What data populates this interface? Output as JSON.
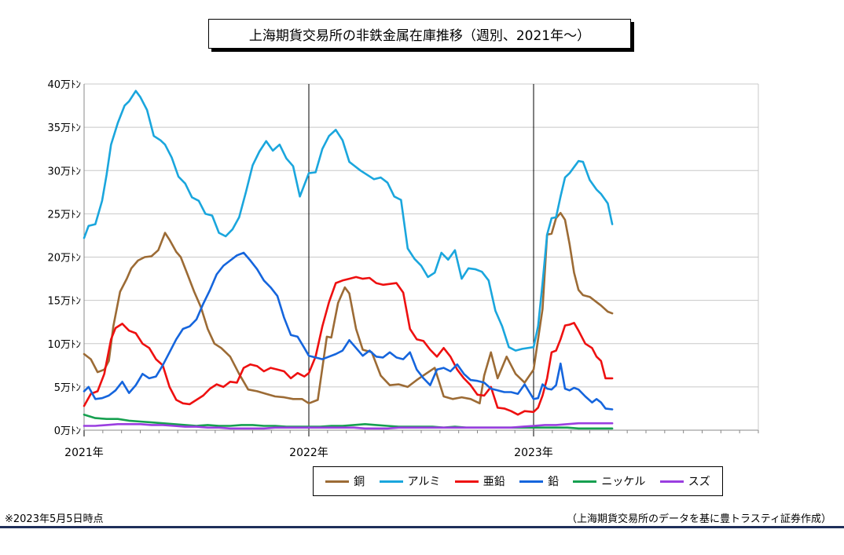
{
  "chart_data": {
    "type": "line",
    "title": "上海期貨交易所の非鉄金属在庫推移（週別、2021年～）",
    "ylabel": "",
    "xlabel": "",
    "ylim": [
      0,
      40
    ],
    "y_ticks": [
      0,
      5,
      10,
      15,
      20,
      25,
      30,
      35,
      40
    ],
    "y_tick_labels": [
      "0万ﾄﾝ",
      "5万ﾄﾝ",
      "10万ﾄﾝ",
      "15万ﾄﾝ",
      "20万ﾄﾝ",
      "25万ﾄﾝ",
      "30万ﾄﾝ",
      "35万ﾄﾝ",
      "40万ﾄﾝ"
    ],
    "x_labels": [
      "2021年",
      "2022年",
      "2023年"
    ],
    "xlim": [
      2021.0,
      2024.0
    ],
    "grid": true,
    "legend_position": "bottom",
    "series": [
      {
        "name": "銅",
        "color": "#9c6b35",
        "x": [
          2021.0,
          2021.03,
          2021.06,
          2021.09,
          2021.11,
          2021.13,
          2021.16,
          2021.19,
          2021.21,
          2021.24,
          2021.27,
          2021.3,
          2021.33,
          2021.36,
          2021.38,
          2021.41,
          2021.43,
          2021.46,
          2021.49,
          2021.52,
          2021.55,
          2021.58,
          2021.61,
          2021.65,
          2021.69,
          2021.73,
          2021.77,
          2021.81,
          2021.85,
          2021.89,
          2021.93,
          2021.97,
          2022.0,
          2022.04,
          2022.08,
          2022.1,
          2022.13,
          2022.16,
          2022.18,
          2022.21,
          2022.24,
          2022.28,
          2022.32,
          2022.36,
          2022.4,
          2022.44,
          2022.48,
          2022.52,
          2022.56,
          2022.6,
          2022.64,
          2022.68,
          2022.72,
          2022.76,
          2022.78,
          2022.81,
          2022.84,
          2022.88,
          2022.92,
          2022.96,
          2023.0,
          2023.02,
          2023.04,
          2023.06,
          2023.08,
          2023.1,
          2023.12,
          2023.14,
          2023.16,
          2023.18,
          2023.2,
          2023.22,
          2023.25,
          2023.28,
          2023.3,
          2023.33,
          2023.35
        ],
        "y": [
          8.8,
          8.2,
          6.7,
          7.0,
          8.0,
          12.0,
          16.0,
          17.5,
          18.7,
          19.6,
          20.0,
          20.1,
          20.8,
          22.8,
          22.0,
          20.6,
          20.0,
          18.0,
          16.0,
          14.2,
          11.7,
          10.0,
          9.5,
          8.5,
          6.5,
          4.7,
          4.5,
          4.2,
          3.9,
          3.8,
          3.6,
          3.6,
          3.1,
          3.5,
          10.8,
          10.7,
          14.7,
          16.5,
          15.8,
          11.7,
          9.3,
          9.0,
          6.3,
          5.2,
          5.3,
          5.0,
          5.8,
          6.5,
          7.2,
          3.9,
          3.6,
          3.8,
          3.6,
          3.1,
          6.3,
          9.0,
          6.0,
          8.5,
          6.5,
          5.5,
          7.0,
          10.5,
          14.0,
          22.6,
          22.7,
          24.5,
          25.1,
          24.3,
          21.5,
          18.2,
          16.2,
          15.6,
          15.4,
          14.8,
          14.4,
          13.7,
          13.5
        ]
      },
      {
        "name": "アルミ",
        "color": "#1aa6dd",
        "x": [
          2021.0,
          2021.02,
          2021.05,
          2021.08,
          2021.1,
          2021.12,
          2021.15,
          2021.18,
          2021.2,
          2021.23,
          2021.25,
          2021.28,
          2021.31,
          2021.34,
          2021.36,
          2021.39,
          2021.42,
          2021.45,
          2021.48,
          2021.51,
          2021.54,
          2021.57,
          2021.6,
          2021.63,
          2021.66,
          2021.69,
          2021.72,
          2021.75,
          2021.78,
          2021.81,
          2021.84,
          2021.87,
          2021.9,
          2021.93,
          2021.96,
          2022.0,
          2022.03,
          2022.06,
          2022.09,
          2022.12,
          2022.15,
          2022.18,
          2022.2,
          2022.23,
          2022.26,
          2022.29,
          2022.32,
          2022.35,
          2022.38,
          2022.41,
          2022.44,
          2022.47,
          2022.5,
          2022.53,
          2022.56,
          2022.59,
          2022.62,
          2022.65,
          2022.68,
          2022.71,
          2022.74,
          2022.77,
          2022.8,
          2022.83,
          2022.86,
          2022.89,
          2022.92,
          2022.95,
          2023.0,
          2023.02,
          2023.04,
          2023.06,
          2023.08,
          2023.1,
          2023.12,
          2023.14,
          2023.16,
          2023.18,
          2023.2,
          2023.22,
          2023.25,
          2023.28,
          2023.3,
          2023.33,
          2023.35
        ],
        "y": [
          22.2,
          23.6,
          23.8,
          26.5,
          29.5,
          33.0,
          35.5,
          37.5,
          38.0,
          39.2,
          38.5,
          37.0,
          34.0,
          33.5,
          33.0,
          31.5,
          29.3,
          28.5,
          26.9,
          26.5,
          25.0,
          24.8,
          22.8,
          22.4,
          23.2,
          24.6,
          27.5,
          30.6,
          32.2,
          33.4,
          32.3,
          33.0,
          31.4,
          30.5,
          27.0,
          29.7,
          29.8,
          32.5,
          34.0,
          34.7,
          33.5,
          31.0,
          30.6,
          30.0,
          29.5,
          29.0,
          29.2,
          28.6,
          27.0,
          26.6,
          21.0,
          19.8,
          19.0,
          17.7,
          18.2,
          20.5,
          19.7,
          20.8,
          17.5,
          18.7,
          18.6,
          18.3,
          17.3,
          13.8,
          12.0,
          9.6,
          9.2,
          9.4,
          9.6,
          12.0,
          17.0,
          22.6,
          24.5,
          24.6,
          27.0,
          29.2,
          29.7,
          30.4,
          31.1,
          31.0,
          28.9,
          27.8,
          27.3,
          26.2,
          23.8
        ]
      },
      {
        "name": "亜鉛",
        "color": "#ee1010",
        "x": [
          2021.0,
          2021.03,
          2021.06,
          2021.09,
          2021.12,
          2021.14,
          2021.17,
          2021.2,
          2021.23,
          2021.26,
          2021.29,
          2021.32,
          2021.35,
          2021.38,
          2021.41,
          2021.44,
          2021.47,
          2021.5,
          2021.53,
          2021.56,
          2021.59,
          2021.62,
          2021.65,
          2021.68,
          2021.71,
          2021.74,
          2021.77,
          2021.8,
          2021.83,
          2021.86,
          2021.89,
          2021.92,
          2021.95,
          2021.98,
          2022.0,
          2022.03,
          2022.06,
          2022.09,
          2022.12,
          2022.15,
          2022.18,
          2022.21,
          2022.24,
          2022.27,
          2022.3,
          2022.33,
          2022.36,
          2022.39,
          2022.42,
          2022.45,
          2022.48,
          2022.51,
          2022.54,
          2022.57,
          2022.6,
          2022.63,
          2022.66,
          2022.69,
          2022.72,
          2022.75,
          2022.78,
          2022.81,
          2022.84,
          2022.87,
          2022.9,
          2022.93,
          2022.96,
          2023.0,
          2023.02,
          2023.04,
          2023.06,
          2023.08,
          2023.1,
          2023.12,
          2023.14,
          2023.16,
          2023.18,
          2023.2,
          2023.23,
          2023.26,
          2023.28,
          2023.3,
          2023.32,
          2023.35
        ],
        "y": [
          2.8,
          4.2,
          4.5,
          6.5,
          10.5,
          11.8,
          12.3,
          11.5,
          11.2,
          10.0,
          9.5,
          8.2,
          7.5,
          5.0,
          3.5,
          3.1,
          3.0,
          3.5,
          4.0,
          4.8,
          5.3,
          5.0,
          5.6,
          5.5,
          7.2,
          7.6,
          7.4,
          6.8,
          7.2,
          7.0,
          6.8,
          6.0,
          6.6,
          6.2,
          6.6,
          8.5,
          12.0,
          14.8,
          17.0,
          17.3,
          17.5,
          17.7,
          17.5,
          17.6,
          17.0,
          16.8,
          16.9,
          17.0,
          15.9,
          11.7,
          10.5,
          10.3,
          9.3,
          8.5,
          9.5,
          8.5,
          7.0,
          6.0,
          5.2,
          4.1,
          4.0,
          5.0,
          2.6,
          2.5,
          2.2,
          1.8,
          2.2,
          2.1,
          2.6,
          4.0,
          6.0,
          9.0,
          9.2,
          10.5,
          12.1,
          12.2,
          12.4,
          11.5,
          10.0,
          9.5,
          8.5,
          8.0,
          6.0,
          6.0
        ]
      },
      {
        "name": "鉛",
        "color": "#1565dd",
        "x": [
          2021.0,
          2021.02,
          2021.05,
          2021.08,
          2021.11,
          2021.14,
          2021.17,
          2021.2,
          2021.23,
          2021.26,
          2021.29,
          2021.32,
          2021.35,
          2021.38,
          2021.41,
          2021.44,
          2021.47,
          2021.5,
          2021.53,
          2021.56,
          2021.59,
          2021.62,
          2021.65,
          2021.68,
          2021.71,
          2021.74,
          2021.77,
          2021.8,
          2021.83,
          2021.86,
          2021.89,
          2021.92,
          2021.95,
          2021.98,
          2022.0,
          2022.03,
          2022.06,
          2022.09,
          2022.12,
          2022.15,
          2022.18,
          2022.21,
          2022.24,
          2022.27,
          2022.3,
          2022.33,
          2022.36,
          2022.39,
          2022.42,
          2022.45,
          2022.48,
          2022.51,
          2022.54,
          2022.57,
          2022.6,
          2022.63,
          2022.66,
          2022.69,
          2022.72,
          2022.75,
          2022.78,
          2022.81,
          2022.84,
          2022.87,
          2022.9,
          2022.93,
          2022.96,
          2023.0,
          2023.02,
          2023.04,
          2023.06,
          2023.08,
          2023.1,
          2023.12,
          2023.14,
          2023.16,
          2023.18,
          2023.2,
          2023.23,
          2023.26,
          2023.28,
          2023.3,
          2023.32,
          2023.35
        ],
        "y": [
          4.5,
          5.0,
          3.6,
          3.7,
          4.0,
          4.6,
          5.6,
          4.3,
          5.2,
          6.5,
          6.0,
          6.2,
          7.5,
          9.0,
          10.5,
          11.7,
          12.0,
          12.8,
          14.6,
          16.2,
          18.0,
          19.0,
          19.6,
          20.2,
          20.5,
          19.6,
          18.6,
          17.3,
          16.5,
          15.5,
          13.0,
          11.0,
          10.8,
          9.5,
          8.6,
          8.4,
          8.2,
          8.5,
          8.8,
          9.2,
          10.4,
          9.5,
          8.6,
          9.2,
          8.5,
          8.4,
          9.0,
          8.4,
          8.2,
          9.0,
          7.0,
          6.0,
          5.2,
          7.0,
          7.2,
          6.8,
          7.6,
          6.5,
          5.8,
          5.7,
          5.5,
          4.8,
          4.6,
          4.4,
          4.4,
          4.2,
          5.3,
          3.6,
          3.7,
          5.3,
          4.8,
          4.7,
          5.2,
          7.7,
          4.8,
          4.6,
          4.9,
          4.7,
          3.9,
          3.2,
          3.6,
          3.2,
          2.5,
          2.4
        ]
      },
      {
        "name": "ニッケル",
        "color": "#16a050",
        "x": [
          2021.0,
          2021.05,
          2021.1,
          2021.15,
          2021.2,
          2021.25,
          2021.3,
          2021.35,
          2021.4,
          2021.45,
          2021.5,
          2021.55,
          2021.6,
          2021.65,
          2021.7,
          2021.75,
          2021.8,
          2021.85,
          2021.9,
          2021.95,
          2022.0,
          2022.05,
          2022.1,
          2022.15,
          2022.2,
          2022.25,
          2022.3,
          2022.35,
          2022.4,
          2022.45,
          2022.5,
          2022.55,
          2022.6,
          2022.65,
          2022.7,
          2022.75,
          2022.8,
          2022.85,
          2022.9,
          2022.95,
          2023.0,
          2023.05,
          2023.1,
          2023.15,
          2023.2,
          2023.25,
          2023.3,
          2023.35
        ],
        "y": [
          1.8,
          1.4,
          1.3,
          1.3,
          1.1,
          1.0,
          0.9,
          0.8,
          0.7,
          0.6,
          0.5,
          0.6,
          0.5,
          0.5,
          0.6,
          0.6,
          0.5,
          0.5,
          0.4,
          0.4,
          0.4,
          0.4,
          0.5,
          0.5,
          0.6,
          0.7,
          0.6,
          0.5,
          0.4,
          0.4,
          0.4,
          0.4,
          0.3,
          0.4,
          0.3,
          0.3,
          0.3,
          0.3,
          0.3,
          0.3,
          0.3,
          0.3,
          0.3,
          0.3,
          0.2,
          0.2,
          0.2,
          0.2
        ]
      },
      {
        "name": "スズ",
        "color": "#9a3ee0",
        "x": [
          2021.0,
          2021.05,
          2021.1,
          2021.15,
          2021.2,
          2021.25,
          2021.3,
          2021.35,
          2021.4,
          2021.45,
          2021.5,
          2021.55,
          2021.6,
          2021.65,
          2021.7,
          2021.75,
          2021.8,
          2021.85,
          2021.9,
          2021.95,
          2022.0,
          2022.05,
          2022.1,
          2022.15,
          2022.2,
          2022.25,
          2022.3,
          2022.35,
          2022.4,
          2022.45,
          2022.5,
          2022.55,
          2022.6,
          2022.65,
          2022.7,
          2022.75,
          2022.8,
          2022.85,
          2022.9,
          2022.95,
          2023.0,
          2023.05,
          2023.1,
          2023.15,
          2023.2,
          2023.25,
          2023.3,
          2023.35
        ],
        "y": [
          0.5,
          0.5,
          0.6,
          0.7,
          0.7,
          0.7,
          0.6,
          0.6,
          0.5,
          0.4,
          0.4,
          0.3,
          0.3,
          0.2,
          0.2,
          0.2,
          0.2,
          0.3,
          0.3,
          0.3,
          0.3,
          0.3,
          0.3,
          0.3,
          0.3,
          0.2,
          0.2,
          0.2,
          0.3,
          0.3,
          0.3,
          0.3,
          0.3,
          0.3,
          0.3,
          0.3,
          0.3,
          0.3,
          0.3,
          0.4,
          0.5,
          0.6,
          0.6,
          0.7,
          0.8,
          0.8,
          0.8,
          0.8
        ]
      }
    ]
  },
  "notes": {
    "left": "※2023年5月5日時点",
    "right": "（上海期貨交易所のデータを基に豊トラスティ証券作成）"
  }
}
